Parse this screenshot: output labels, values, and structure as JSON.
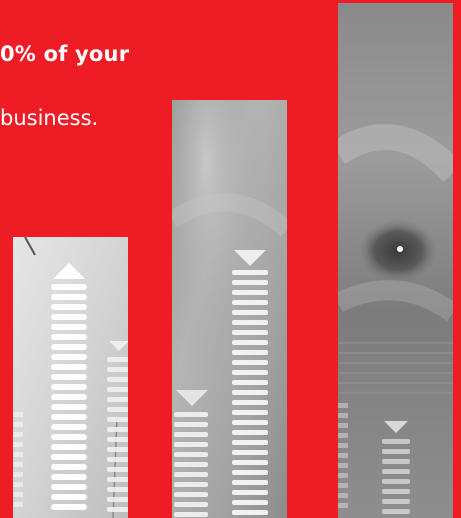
{
  "headline": "0% of your",
  "subline": "business.",
  "colors": {
    "background": "#ee1c25",
    "text": "#ffffff"
  },
  "icons": [
    "up-arrow-marker-icon",
    "down-arrow-marker-icon"
  ]
}
